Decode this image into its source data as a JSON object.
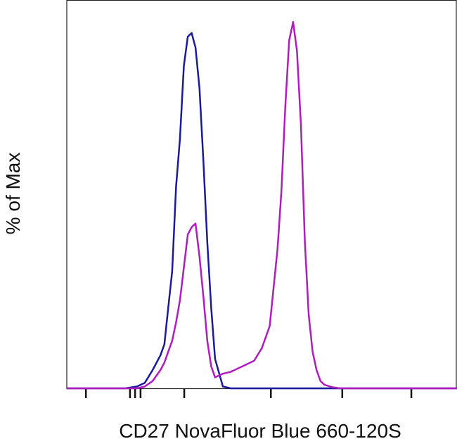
{
  "chart_data": {
    "type": "line",
    "x_label": "CD27 NovaFluor Blue 660-120S",
    "y_label": "% of Max",
    "x": [
      0,
      10,
      15,
      18,
      20,
      22,
      24,
      25,
      26,
      27,
      28,
      29,
      30,
      31,
      32,
      33,
      34,
      35,
      36,
      37,
      38,
      40,
      42,
      45,
      48,
      50,
      52,
      54,
      55,
      56,
      57,
      58,
      59,
      60,
      61,
      62,
      63,
      64,
      65,
      66,
      68,
      70,
      75,
      80,
      90,
      100
    ],
    "series": [
      {
        "color": "#1a1a9c",
        "values": [
          0,
          0,
          0,
          0.5,
          1.5,
          5,
          9,
          12,
          22,
          32,
          55,
          68,
          88,
          96,
          97,
          93,
          82,
          62,
          40,
          22,
          8,
          0.5,
          0,
          0,
          0,
          0,
          0,
          0,
          0,
          0,
          0,
          0,
          0,
          0,
          0,
          0,
          0,
          0,
          0,
          0,
          0,
          0,
          0,
          0,
          0,
          0
        ]
      },
      {
        "color": "#b01cc0",
        "values": [
          0,
          0,
          0,
          0,
          0.5,
          2,
          5,
          7,
          10,
          13,
          18,
          24,
          33,
          42,
          44,
          45,
          36,
          25,
          13,
          6,
          3,
          4,
          4.5,
          6,
          7.5,
          11,
          17,
          38,
          54,
          77,
          95,
          100,
          92,
          72,
          40,
          20,
          10,
          5,
          2,
          1,
          0.3,
          0,
          0,
          0,
          0,
          0
        ]
      }
    ],
    "xlim": [
      0,
      100
    ],
    "ylim": [
      0,
      106
    ],
    "xticks": [
      4.9,
      16.2,
      17.5,
      18.9,
      30.1,
      52.3,
      70.6,
      88.3
    ]
  }
}
